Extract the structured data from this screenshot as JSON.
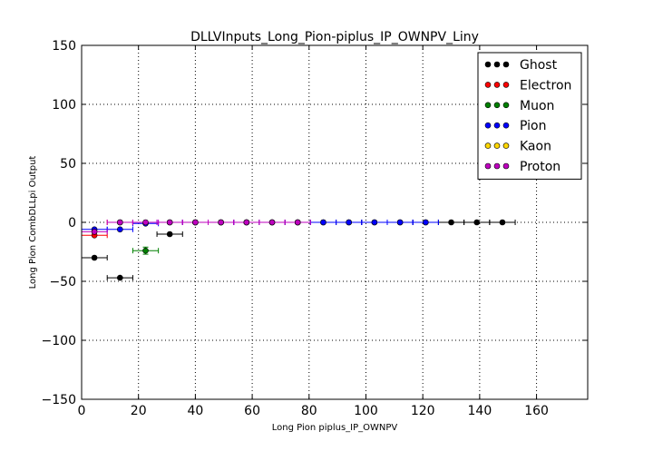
{
  "chart_data": {
    "type": "scatter",
    "title": "DLLVInputs_Long_Pion-piplus_IP_OWNPV_Liny",
    "xlabel": "Long Pion piplus_IP_OWNPV",
    "ylabel": "Long Pion CombDLLpi Output",
    "xlim": [
      0,
      178
    ],
    "ylim": [
      -150,
      150
    ],
    "x_ticks": [
      "0",
      "20",
      "40",
      "60",
      "80",
      "100",
      "120",
      "140",
      "160"
    ],
    "x_tick_values": [
      0,
      20,
      40,
      60,
      80,
      100,
      120,
      140,
      160
    ],
    "y_ticks": [
      "150",
      "100",
      "50",
      "0",
      "−50",
      "−100",
      "−150"
    ],
    "y_tick_values": [
      150,
      100,
      50,
      0,
      -50,
      -100,
      -150
    ],
    "grid": true,
    "legend_position": "top-right",
    "series": [
      {
        "name": "Ghost",
        "color": "#000000",
        "points": [
          {
            "x": 4.5,
            "y": -30,
            "xerr": 4.5
          },
          {
            "x": 13.5,
            "y": -47,
            "xerr": 4.5
          },
          {
            "x": 31,
            "y": -10,
            "xerr": 4.5
          },
          {
            "x": 40,
            "y": 0,
            "xerr": 4.5
          },
          {
            "x": 49,
            "y": 0,
            "xerr": 4.5
          },
          {
            "x": 58,
            "y": 0,
            "xerr": 4.5
          },
          {
            "x": 67,
            "y": 0,
            "xerr": 4.5
          },
          {
            "x": 76,
            "y": 0,
            "xerr": 4.5
          },
          {
            "x": 85,
            "y": 0,
            "xerr": 4.5
          },
          {
            "x": 94,
            "y": 0,
            "xerr": 4.5
          },
          {
            "x": 103,
            "y": 0,
            "xerr": 4.5
          },
          {
            "x": 112,
            "y": 0,
            "xerr": 4.5
          },
          {
            "x": 121,
            "y": 0,
            "xerr": 4.5
          },
          {
            "x": 130,
            "y": 0,
            "xerr": 4.5
          },
          {
            "x": 139,
            "y": 0,
            "xerr": 4.5
          },
          {
            "x": 148,
            "y": 0,
            "xerr": 4.5
          }
        ]
      },
      {
        "name": "Electron",
        "color": "#ff0000",
        "points": [
          {
            "x": 4.5,
            "y": -11,
            "xerr": 4.5
          },
          {
            "x": 13.5,
            "y": 0,
            "xerr": 4.5
          }
        ]
      },
      {
        "name": "Muon",
        "color": "#008000",
        "points": [
          {
            "x": 22.5,
            "y": -24,
            "xerr": 4.5,
            "yerr": 3
          }
        ]
      },
      {
        "name": "Pion",
        "color": "#0000ff",
        "points": [
          {
            "x": 4.5,
            "y": -6,
            "xerr": 4.5
          },
          {
            "x": 13.5,
            "y": -6,
            "xerr": 4.5
          },
          {
            "x": 22.5,
            "y": -1,
            "xerr": 4.5
          },
          {
            "x": 31,
            "y": 0,
            "xerr": 4.5
          },
          {
            "x": 40,
            "y": 0,
            "xerr": 4.5
          },
          {
            "x": 49,
            "y": 0,
            "xerr": 4.5
          },
          {
            "x": 58,
            "y": 0,
            "xerr": 4.5
          },
          {
            "x": 67,
            "y": 0,
            "xerr": 4.5
          },
          {
            "x": 76,
            "y": 0,
            "xerr": 4.5
          },
          {
            "x": 85,
            "y": 0,
            "xerr": 4.5
          },
          {
            "x": 94,
            "y": 0,
            "xerr": 4.5
          },
          {
            "x": 103,
            "y": 0,
            "xerr": 4.5
          },
          {
            "x": 112,
            "y": 0,
            "xerr": 4.5
          },
          {
            "x": 121,
            "y": 0,
            "xerr": 4.5
          }
        ]
      },
      {
        "name": "Kaon",
        "color": "#ffd700",
        "points": []
      },
      {
        "name": "Proton",
        "color": "#bf00bf",
        "points": [
          {
            "x": 4.5,
            "y": -8,
            "xerr": 4.5
          },
          {
            "x": 13.5,
            "y": 0,
            "xerr": 4.5
          },
          {
            "x": 22.5,
            "y": 0,
            "xerr": 4.5
          },
          {
            "x": 31,
            "y": 0,
            "xerr": 4.5
          },
          {
            "x": 40,
            "y": 0,
            "xerr": 4.5
          },
          {
            "x": 49,
            "y": 0,
            "xerr": 4.5
          },
          {
            "x": 58,
            "y": 0,
            "xerr": 4.5
          },
          {
            "x": 67,
            "y": 0,
            "xerr": 4.5
          },
          {
            "x": 76,
            "y": 0,
            "xerr": 4.5
          }
        ]
      }
    ]
  }
}
